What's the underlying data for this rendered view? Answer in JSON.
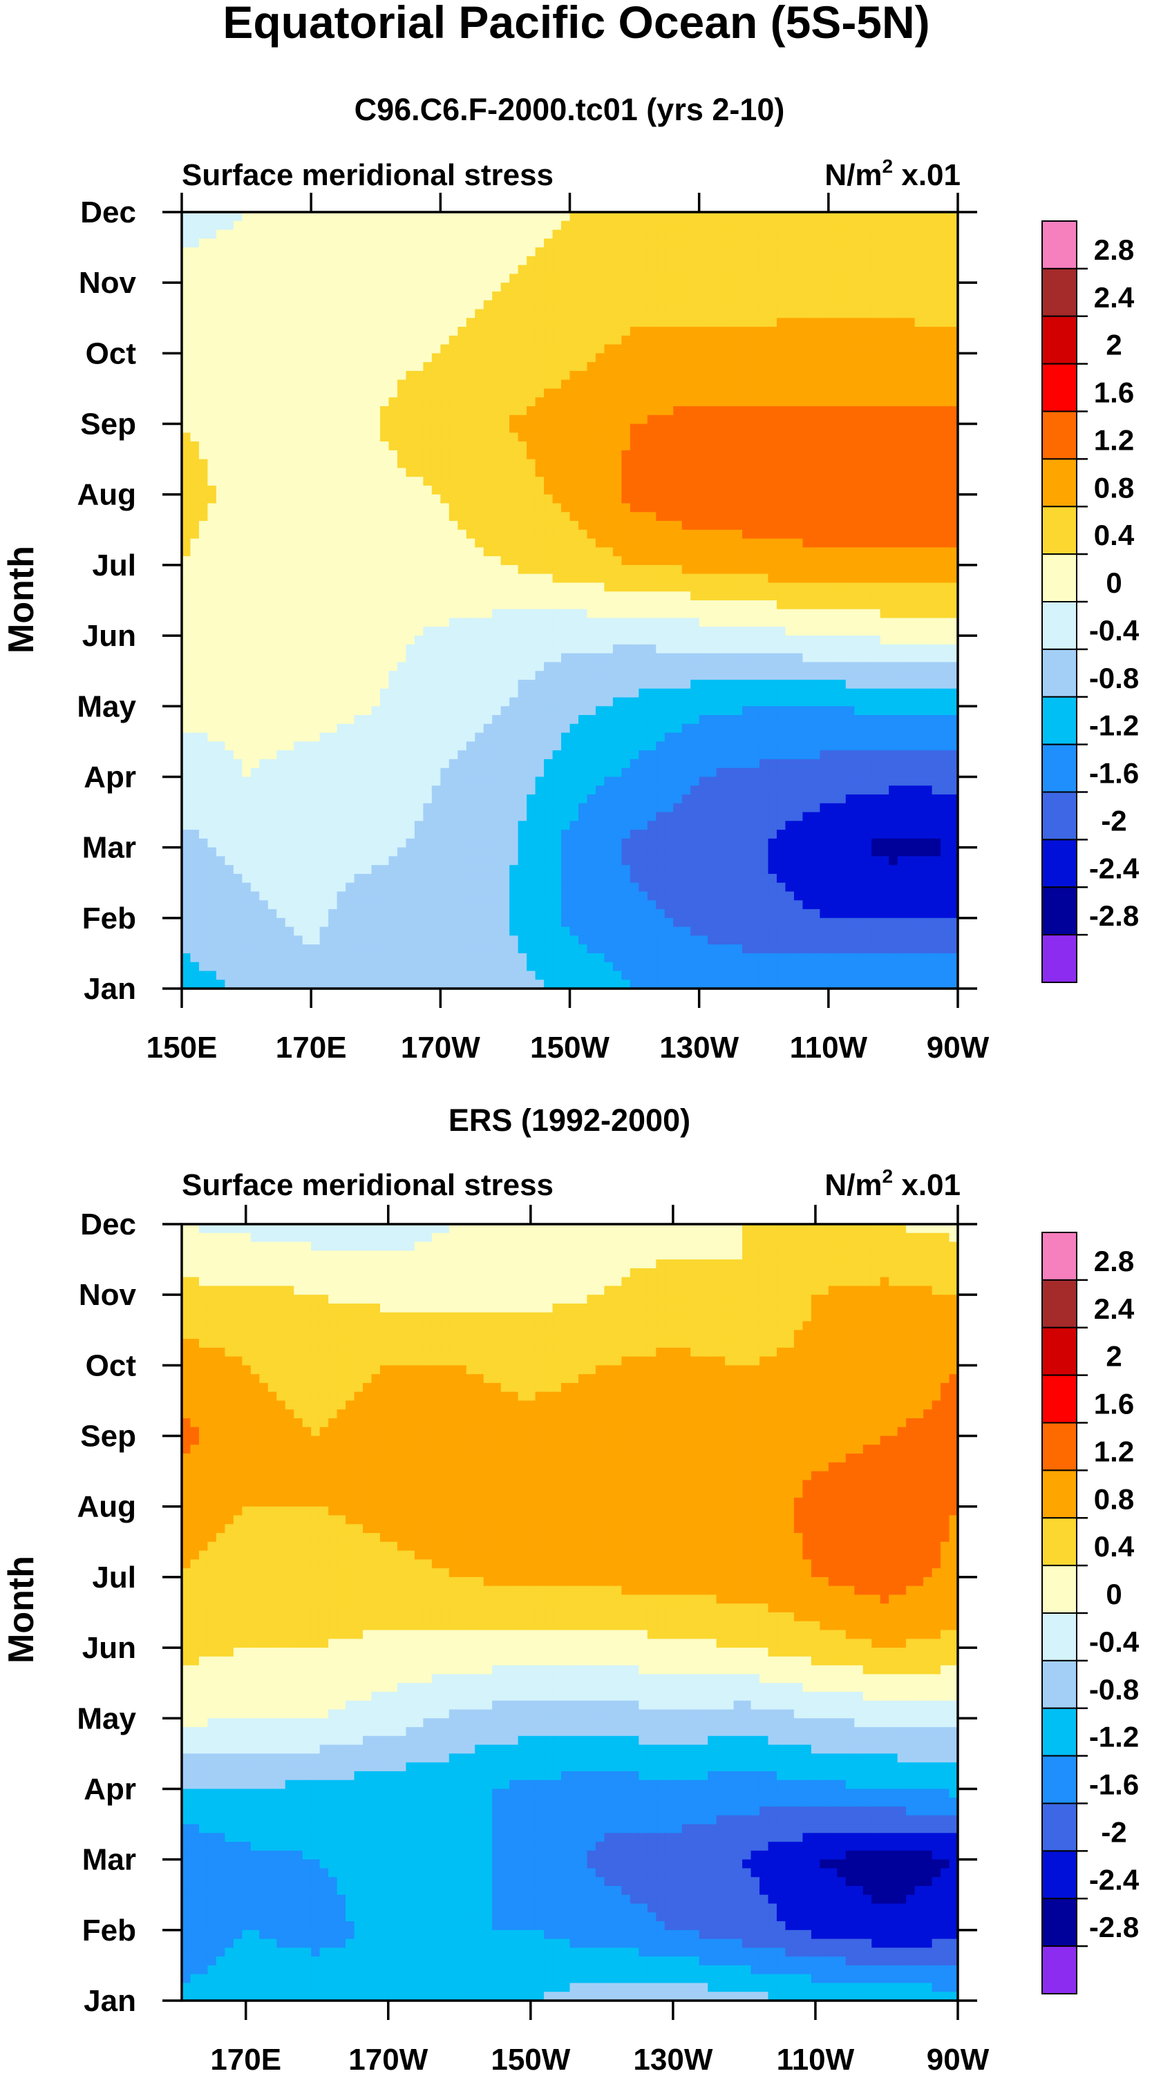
{
  "figure": {
    "title": "Equatorial Pacific Ocean (5S-5N)"
  },
  "colorbar": {
    "levels": [
      "2.8",
      "2.4",
      "2",
      "1.6",
      "1.2",
      "0.8",
      "0.4",
      "0",
      "-0.4",
      "-0.8",
      "-1.2",
      "-1.6",
      "-2",
      "-2.4",
      "-2.8"
    ],
    "colors": [
      "#f67fbe",
      "#a52a2a",
      "#d20000",
      "#ff0000",
      "#ff6a00",
      "#ffa500",
      "#fbd72f",
      "#fdfdc5",
      "#d4f3fb",
      "#a3cff7",
      "#00bff5",
      "#1e8ffc",
      "#3d67e5",
      "#0010d9",
      "#00009a",
      "#8c2cf0"
    ]
  },
  "chart_data": [
    {
      "type": "heatmap",
      "title": "C96.C6.F-2000.tc01 (yrs 2-10)",
      "subtitle_left": "Surface meridional stress",
      "units": "N/m",
      "units_sup": "2",
      "units_scale": "x.01",
      "xlabel": "",
      "ylabel": "Month",
      "x_ticks": [
        "150E",
        "170E",
        "170W",
        "150W",
        "130W",
        "110W",
        "90W"
      ],
      "y_ticks": [
        "Jan",
        "Feb",
        "Mar",
        "Apr",
        "May",
        "Jun",
        "Jul",
        "Aug",
        "Sep",
        "Oct",
        "Nov",
        "Dec"
      ],
      "xlim": [
        150,
        270
      ],
      "x_axis_note": "longitude in degrees east (150E to 90W)",
      "z_grid": {
        "lon": [
          150,
          160,
          170,
          180,
          190,
          200,
          210,
          220,
          230,
          240,
          250,
          260,
          270
        ],
        "values": [
          [
            -1.0,
            -0.7,
            -0.5,
            -0.5,
            -0.5,
            -0.6,
            -0.9,
            -1.2,
            -1.3,
            -1.3,
            -1.2,
            -1.2,
            -1.2
          ],
          [
            -0.6,
            -0.5,
            -0.3,
            -0.7,
            -0.7,
            -0.8,
            -1.3,
            -1.5,
            -1.7,
            -1.9,
            -2.0,
            -2.0,
            -2.0
          ],
          [
            -0.5,
            -0.3,
            -0.2,
            -0.3,
            -0.5,
            -0.7,
            -1.3,
            -1.7,
            -1.8,
            -2.0,
            -2.3,
            -2.5,
            -2.4
          ],
          [
            -0.2,
            0.0,
            -0.1,
            -0.2,
            -0.4,
            -0.6,
            -1.0,
            -1.3,
            -1.6,
            -1.7,
            -1.8,
            -1.9,
            -1.9
          ],
          [
            0.1,
            0.1,
            0.1,
            0.0,
            -0.2,
            -0.4,
            -0.7,
            -0.9,
            -1.1,
            -1.2,
            -1.2,
            -1.1,
            -1.1
          ],
          [
            0.2,
            0.1,
            0.1,
            0.1,
            -0.05,
            -0.2,
            -0.3,
            -0.3,
            -0.2,
            -0.1,
            0.0,
            0.1,
            0.1
          ],
          [
            0.4,
            0.2,
            0.2,
            0.2,
            0.3,
            0.4,
            0.6,
            0.8,
            0.9,
            1.0,
            1.1,
            1.1,
            1.1
          ],
          [
            0.5,
            0.3,
            0.3,
            0.3,
            0.4,
            0.6,
            0.9,
            1.3,
            1.5,
            1.5,
            1.5,
            1.6,
            1.6
          ],
          [
            0.4,
            0.3,
            0.3,
            0.4,
            0.6,
            0.8,
            1.0,
            1.2,
            1.3,
            1.3,
            1.3,
            1.3,
            1.3
          ],
          [
            0.2,
            0.2,
            0.2,
            0.3,
            0.4,
            0.5,
            0.7,
            0.9,
            0.95,
            0.95,
            0.9,
            0.9,
            0.9
          ],
          [
            0.1,
            0.1,
            0.1,
            0.2,
            0.3,
            0.4,
            0.5,
            0.6,
            0.6,
            0.6,
            0.7,
            0.7,
            0.6
          ],
          [
            -0.1,
            0.0,
            0.1,
            0.2,
            0.2,
            0.3,
            0.4,
            0.4,
            0.4,
            0.5,
            0.5,
            0.5,
            0.5
          ]
        ]
      }
    },
    {
      "type": "heatmap",
      "title": "ERS (1992-2000)",
      "subtitle_left": "Surface meridional stress",
      "units": "N/m",
      "units_sup": "2",
      "units_scale": "x.01",
      "xlabel": "",
      "ylabel": "Month",
      "x_ticks": [
        "170E",
        "170W",
        "150W",
        "130W",
        "110W",
        "90W"
      ],
      "y_ticks": [
        "Jan",
        "Feb",
        "Mar",
        "Apr",
        "May",
        "Jun",
        "Jul",
        "Aug",
        "Sep",
        "Oct",
        "Nov",
        "Dec"
      ],
      "xlim": [
        161,
        270
      ],
      "x_axis_note": "longitude in degrees east (about 161E to 90W)",
      "z_grid": {
        "lon": [
          161,
          170,
          180,
          190,
          200,
          210,
          220,
          230,
          240,
          250,
          260,
          270
        ],
        "values": [
          [
            -1.1,
            -1.0,
            -1.0,
            -1.2,
            -0.9,
            -0.8,
            -0.6,
            -0.5,
            -0.7,
            -0.8,
            -0.9,
            -1.0
          ],
          [
            -1.5,
            -1.2,
            -1.3,
            -1.1,
            -1.2,
            -1.2,
            -1.4,
            -1.6,
            -1.8,
            -2.1,
            -2.3,
            -2.2
          ],
          [
            -1.6,
            -1.3,
            -1.2,
            -1.1,
            -1.1,
            -1.3,
            -1.7,
            -1.8,
            -2.0,
            -2.4,
            -2.6,
            -2.4
          ],
          [
            -0.8,
            -0.8,
            -0.9,
            -1.0,
            -1.1,
            -1.3,
            -1.4,
            -1.3,
            -1.4,
            -1.3,
            -1.2,
            -1.1
          ],
          [
            0.1,
            0.0,
            0.0,
            -0.2,
            -0.5,
            -0.6,
            -0.6,
            -0.5,
            -0.6,
            -0.4,
            -0.3,
            -0.3
          ],
          [
            0.5,
            0.4,
            0.4,
            0.3,
            0.3,
            0.2,
            0.2,
            0.3,
            0.4,
            0.6,
            0.8,
            0.7
          ],
          [
            0.8,
            0.6,
            0.6,
            0.7,
            0.8,
            0.9,
            0.9,
            1.0,
            1.0,
            1.2,
            1.4,
            1.1
          ],
          [
            1.0,
            0.8,
            0.8,
            0.9,
            1.0,
            1.0,
            1.0,
            1.05,
            1.0,
            1.3,
            1.4,
            1.2
          ],
          [
            1.3,
            0.9,
            0.8,
            0.9,
            1.0,
            0.9,
            1.0,
            1.0,
            0.9,
            1.1,
            1.2,
            1.3
          ],
          [
            1.0,
            0.8,
            0.7,
            0.8,
            0.8,
            0.7,
            0.8,
            0.9,
            0.8,
            0.9,
            1.0,
            1.2
          ],
          [
            0.5,
            0.5,
            0.4,
            0.3,
            0.3,
            0.3,
            0.4,
            0.5,
            0.4,
            0.8,
            0.9,
            0.8
          ],
          [
            0.0,
            -0.1,
            -0.2,
            -0.2,
            0.0,
            0.1,
            0.3,
            0.3,
            0.4,
            0.5,
            0.4,
            0.3
          ]
        ]
      }
    }
  ]
}
